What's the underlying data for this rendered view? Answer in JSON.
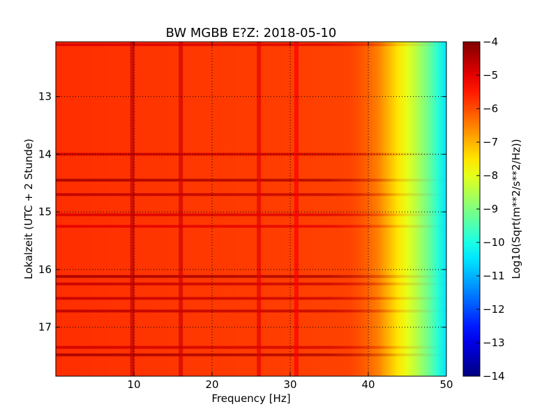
{
  "chart_data": {
    "type": "heatmap",
    "title": "BW MGBB E?Z: 2018-05-10",
    "xlabel": "Frequency [Hz]",
    "ylabel": "Lokalzeit (UTC + 2 Stunde)",
    "xlim": [
      0,
      50
    ],
    "ylim": [
      12.05,
      17.85
    ],
    "y_inverted": true,
    "x_ticks": [
      10,
      20,
      30,
      40,
      50
    ],
    "y_ticks": [
      13,
      14,
      15,
      16,
      17
    ],
    "grid": true,
    "colormap": "jet",
    "colorbar": {
      "label": "Log10(Sqrt(m**2/s**2/Hz))",
      "range": [
        -14,
        -4
      ],
      "ticks": [
        -4,
        -5,
        -6,
        -7,
        -8,
        -9,
        -10,
        -11,
        -12,
        -13,
        -14
      ]
    },
    "base_level_by_frequency": [
      {
        "freq": 0,
        "value": -5.7
      },
      {
        "freq": 38,
        "value": -5.9
      },
      {
        "freq": 41,
        "value": -6.4
      },
      {
        "freq": 43,
        "value": -7.2
      },
      {
        "freq": 45,
        "value": -8.0
      },
      {
        "freq": 47,
        "value": -8.8
      },
      {
        "freq": 49,
        "value": -9.9
      },
      {
        "freq": 50,
        "value": -10.5
      }
    ],
    "vertical_features": [
      {
        "freq": 9.8,
        "value": -4.6
      },
      {
        "freq": 16.0,
        "value": -4.8
      },
      {
        "freq": 26.0,
        "value": -5.0
      },
      {
        "freq": 30.8,
        "value": -5.2
      }
    ],
    "horizontal_bands": [
      {
        "time": 12.1,
        "value": -4.9
      },
      {
        "time": 14.0,
        "value": -4.8
      },
      {
        "time": 14.45,
        "value": -4.4
      },
      {
        "time": 14.7,
        "value": -4.6
      },
      {
        "time": 15.05,
        "value": -4.9
      },
      {
        "time": 15.25,
        "value": -5.0
      },
      {
        "time": 16.12,
        "value": -4.4
      },
      {
        "time": 16.25,
        "value": -4.7
      },
      {
        "time": 16.5,
        "value": -4.7
      },
      {
        "time": 16.72,
        "value": -4.6
      },
      {
        "time": 17.35,
        "value": -4.8
      },
      {
        "time": 17.48,
        "value": -4.4
      }
    ]
  }
}
